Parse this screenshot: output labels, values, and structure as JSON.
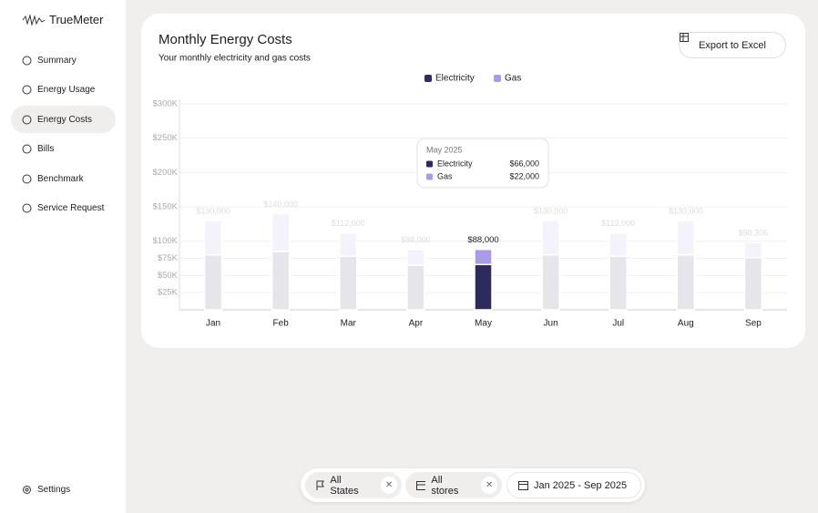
{
  "app": {
    "brand": "TrueMeter",
    "nav": [
      "Summary",
      "Energy Usage",
      "Energy Costs",
      "Bills",
      "Benchmark",
      "Service Request"
    ],
    "active_nav": "Energy Costs",
    "settings": "Settings",
    "export": "Export to Excel",
    "filters": [
      "All States",
      "All stores"
    ],
    "date_range": "Jan 2025 - Sep 2025",
    "tooltip": {
      "title": "May 2025",
      "rows": [
        {
          "name": "Electricity",
          "value": "$66,000"
        },
        {
          "name": "Gas",
          "value": "$22,000"
        }
      ]
    }
  },
  "chart_data": {
    "type": "stacked_bar",
    "title": "Monthly Energy Costs",
    "subtitle": "Your monthly electricity and gas costs",
    "categories": [
      "Jan",
      "Feb",
      "Mar",
      "Apr",
      "May",
      "Jun",
      "Jul",
      "Aug",
      "Sep"
    ],
    "series": [
      {
        "name": "Electricity",
        "color": "#2d2a5e",
        "values": [
          80000,
          85000,
          78000,
          65000,
          66000,
          80000,
          78000,
          80000,
          76000
        ]
      },
      {
        "name": "Gas",
        "color": "#a99be6",
        "values": [
          50000,
          55000,
          34000,
          23000,
          22000,
          50000,
          34000,
          50000,
          22306
        ]
      }
    ],
    "total_labels": [
      "$130,000",
      "$140,000",
      "$112,000",
      "$88,000",
      "$88,000",
      "$130,000",
      "$112,000",
      "$130,000",
      "$98,306"
    ],
    "active_category": "May",
    "ylim": [
      0,
      300000
    ],
    "yticks": [
      {
        "value": 300000,
        "label": "$300K"
      },
      {
        "value": 250000,
        "label": "$250K"
      },
      {
        "value": 200000,
        "label": "$200K"
      },
      {
        "value": 150000,
        "label": "$150K"
      },
      {
        "value": 100000,
        "label": "$100K"
      },
      {
        "value": 75000,
        "label": "$75K"
      },
      {
        "value": 50000,
        "label": "$50K"
      },
      {
        "value": 25000,
        "label": "$25K"
      }
    ],
    "grid": true,
    "legend": "top"
  }
}
